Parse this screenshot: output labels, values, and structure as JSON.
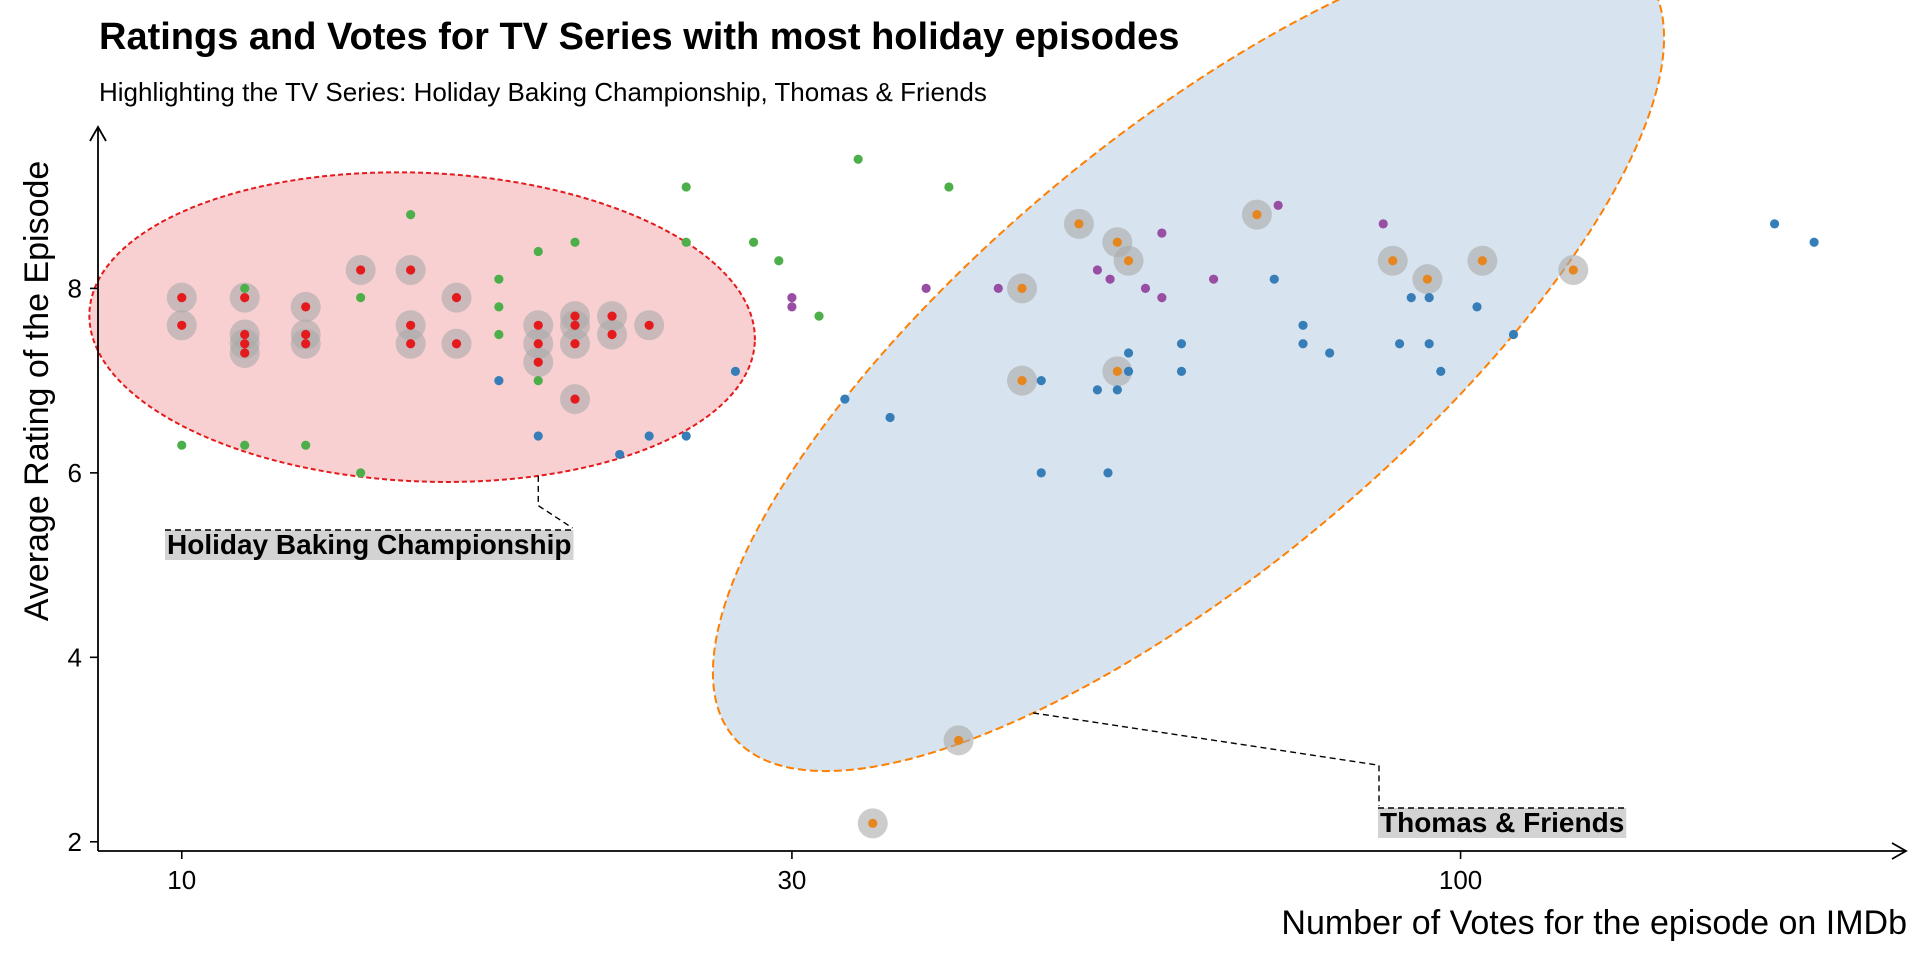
{
  "chart_data": {
    "type": "scatter",
    "title": "Ratings and Votes for TV Series with most holiday episodes",
    "subtitle": "Highlighting the TV Series: Holiday Baking Championship, Thomas & Friends",
    "xlabel": "Number of Votes for the episode on IMDb",
    "ylabel": "Average Rating of the Episode",
    "x_scale": "log10",
    "xlim": [
      8.6,
      223
    ],
    "ylim": [
      1.9,
      9.75
    ],
    "x_ticks": [
      10,
      30,
      100
    ],
    "x_tick_labels": [
      "10",
      "30",
      "100"
    ],
    "y_ticks": [
      2,
      4,
      6,
      8
    ],
    "y_tick_labels": [
      "2",
      "4",
      "6",
      "8"
    ],
    "grid": false,
    "legend": "none",
    "colors": {
      "holiday_baking": "#e41a1c",
      "thomas": "#e6861f",
      "green_series": "#4daf4a",
      "blue_series": "#377eb8",
      "purple_series": "#984ea3",
      "highlight_halo": "#aaaaaa",
      "hbc_ellipse_fill": "#f8d0d2",
      "hbc_ellipse_stroke": "#e41a1c",
      "tf_ellipse_fill": "#d7e4f0",
      "tf_ellipse_stroke": "#ff7f00",
      "label_bg": "#d3d3d3"
    },
    "series": [
      {
        "key": "holiday_baking",
        "highlighted": true,
        "points": [
          {
            "x": 10,
            "y": 7.9
          },
          {
            "x": 10,
            "y": 7.6
          },
          {
            "x": 11.2,
            "y": 7.9
          },
          {
            "x": 11.2,
            "y": 7.5
          },
          {
            "x": 11.2,
            "y": 7.4
          },
          {
            "x": 11.2,
            "y": 7.3
          },
          {
            "x": 12.5,
            "y": 7.8
          },
          {
            "x": 12.5,
            "y": 7.5
          },
          {
            "x": 12.5,
            "y": 7.4
          },
          {
            "x": 13.8,
            "y": 8.2
          },
          {
            "x": 15.1,
            "y": 8.2
          },
          {
            "x": 15.1,
            "y": 7.6
          },
          {
            "x": 15.1,
            "y": 7.4
          },
          {
            "x": 16.4,
            "y": 7.9
          },
          {
            "x": 16.4,
            "y": 7.4
          },
          {
            "x": 19.0,
            "y": 7.6
          },
          {
            "x": 19.0,
            "y": 7.4
          },
          {
            "x": 19.0,
            "y": 7.2
          },
          {
            "x": 20.3,
            "y": 7.7
          },
          {
            "x": 20.3,
            "y": 7.6
          },
          {
            "x": 20.3,
            "y": 7.4
          },
          {
            "x": 20.3,
            "y": 6.8
          },
          {
            "x": 21.7,
            "y": 7.7
          },
          {
            "x": 21.7,
            "y": 7.5
          },
          {
            "x": 23.2,
            "y": 7.6
          }
        ]
      },
      {
        "key": "thomas",
        "highlighted": true,
        "points": [
          {
            "x": 34.7,
            "y": 2.2
          },
          {
            "x": 40.5,
            "y": 3.1
          },
          {
            "x": 45.4,
            "y": 8.0
          },
          {
            "x": 45.4,
            "y": 7.0
          },
          {
            "x": 50.3,
            "y": 8.7
          },
          {
            "x": 53.9,
            "y": 8.5
          },
          {
            "x": 53.9,
            "y": 7.1
          },
          {
            "x": 55.0,
            "y": 8.3
          },
          {
            "x": 69.3,
            "y": 8.8
          },
          {
            "x": 88.5,
            "y": 8.3
          },
          {
            "x": 94.2,
            "y": 8.1
          },
          {
            "x": 104,
            "y": 8.3
          },
          {
            "x": 122.5,
            "y": 8.2
          }
        ]
      },
      {
        "key": "green_series",
        "highlighted": false,
        "points": [
          {
            "x": 10,
            "y": 6.3
          },
          {
            "x": 11.2,
            "y": 8.0
          },
          {
            "x": 11.2,
            "y": 6.3
          },
          {
            "x": 12.5,
            "y": 6.3
          },
          {
            "x": 13.8,
            "y": 7.9
          },
          {
            "x": 13.8,
            "y": 6.0
          },
          {
            "x": 15.1,
            "y": 8.8
          },
          {
            "x": 17.7,
            "y": 8.1
          },
          {
            "x": 17.7,
            "y": 7.8
          },
          {
            "x": 17.7,
            "y": 7.5
          },
          {
            "x": 19.0,
            "y": 8.4
          },
          {
            "x": 19.0,
            "y": 7.0
          },
          {
            "x": 20.3,
            "y": 8.5
          },
          {
            "x": 24.8,
            "y": 9.1
          },
          {
            "x": 24.8,
            "y": 8.5
          },
          {
            "x": 28.0,
            "y": 8.5
          },
          {
            "x": 29.3,
            "y": 8.3
          },
          {
            "x": 31.5,
            "y": 7.7
          },
          {
            "x": 33.8,
            "y": 9.4
          },
          {
            "x": 39.8,
            "y": 9.1
          }
        ]
      },
      {
        "key": "blue_series",
        "highlighted": false,
        "points": [
          {
            "x": 17.7,
            "y": 7.0
          },
          {
            "x": 19.0,
            "y": 6.4
          },
          {
            "x": 22.0,
            "y": 6.2
          },
          {
            "x": 23.2,
            "y": 6.4
          },
          {
            "x": 24.8,
            "y": 6.4
          },
          {
            "x": 27.1,
            "y": 7.1
          },
          {
            "x": 33.0,
            "y": 6.8
          },
          {
            "x": 35.8,
            "y": 6.6
          },
          {
            "x": 47.0,
            "y": 7.0
          },
          {
            "x": 47.0,
            "y": 6.0
          },
          {
            "x": 52.0,
            "y": 6.9
          },
          {
            "x": 53.0,
            "y": 6.0
          },
          {
            "x": 53.9,
            "y": 6.9
          },
          {
            "x": 55.0,
            "y": 7.3
          },
          {
            "x": 55.0,
            "y": 7.1
          },
          {
            "x": 60.5,
            "y": 7.4
          },
          {
            "x": 60.5,
            "y": 7.1
          },
          {
            "x": 71.5,
            "y": 8.1
          },
          {
            "x": 75.3,
            "y": 7.6
          },
          {
            "x": 75.3,
            "y": 7.4
          },
          {
            "x": 79.0,
            "y": 7.3
          },
          {
            "x": 89.6,
            "y": 7.4
          },
          {
            "x": 91.5,
            "y": 7.9
          },
          {
            "x": 94.5,
            "y": 7.9
          },
          {
            "x": 94.5,
            "y": 7.4
          },
          {
            "x": 96.5,
            "y": 7.1
          },
          {
            "x": 103,
            "y": 7.8
          },
          {
            "x": 110,
            "y": 7.5
          },
          {
            "x": 176,
            "y": 8.7
          },
          {
            "x": 189,
            "y": 8.5
          }
        ]
      },
      {
        "key": "purple_series",
        "highlighted": false,
        "points": [
          {
            "x": 30.0,
            "y": 7.9
          },
          {
            "x": 30.0,
            "y": 7.8
          },
          {
            "x": 38.2,
            "y": 8.0
          },
          {
            "x": 43.5,
            "y": 8.0
          },
          {
            "x": 52.0,
            "y": 8.2
          },
          {
            "x": 53.2,
            "y": 8.1
          },
          {
            "x": 56.7,
            "y": 8.0
          },
          {
            "x": 58.4,
            "y": 8.6
          },
          {
            "x": 58.4,
            "y": 7.9
          },
          {
            "x": 64.1,
            "y": 8.1
          },
          {
            "x": 72.0,
            "y": 8.9
          },
          {
            "x": 87.0,
            "y": 8.7
          }
        ]
      }
    ],
    "annotations": [
      {
        "key": "holiday_baking",
        "label": "Holiday Baking Championship"
      },
      {
        "key": "thomas",
        "label": "Thomas & Friends"
      }
    ]
  }
}
